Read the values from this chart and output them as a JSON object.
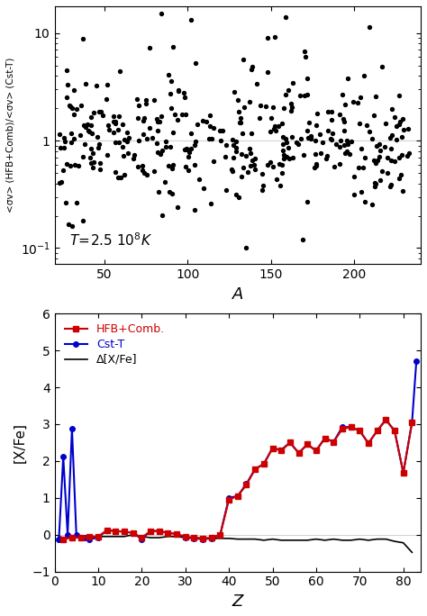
{
  "top_panel": {
    "xlabel": "A",
    "ylabel": "<σv> (HFB+Comb)/<σv> (Cst-T)",
    "annotation": "T=2.5 10⁸K",
    "xlim": [
      20,
      240
    ],
    "ylim_log": [
      -1.15,
      1.25
    ],
    "yticks": [
      0.1,
      1.0,
      10.0
    ],
    "hline_y": 1.0
  },
  "bottom_panel": {
    "xlabel": "Z",
    "ylabel": "[X/Fe]",
    "xlim": [
      0,
      84
    ],
    "ylim": [
      -1,
      6
    ],
    "yticks": [
      -1,
      0,
      1,
      2,
      3,
      4,
      5,
      6
    ],
    "hline_y": 0.0,
    "hfb_label": "HFB+Comb.",
    "cst_label": "Cst-T",
    "delta_label": "Δ[X/Fe]",
    "hfb_color": "#cc0000",
    "cst_color": "#0000cc",
    "delta_color": "#000000",
    "Z_hfb": [
      2,
      4,
      6,
      8,
      10,
      12,
      14,
      16,
      18,
      20,
      22,
      24,
      26,
      28,
      30,
      32,
      34,
      36,
      38,
      40,
      42,
      44,
      46,
      48,
      50,
      52,
      54,
      56,
      58,
      60,
      62,
      64,
      66,
      68,
      70,
      72,
      74,
      76,
      78,
      80,
      82
    ],
    "hfb_vals": [
      -0.12,
      -0.08,
      -0.08,
      -0.05,
      -0.05,
      0.12,
      0.1,
      0.08,
      0.05,
      -0.08,
      0.1,
      0.1,
      0.05,
      0.02,
      -0.05,
      -0.08,
      -0.1,
      -0.08,
      0.0,
      0.95,
      1.05,
      1.35,
      1.78,
      1.92,
      2.35,
      2.28,
      2.5,
      2.22,
      2.45,
      2.28,
      2.62,
      2.52,
      2.87,
      2.92,
      2.82,
      2.48,
      2.82,
      3.12,
      2.82,
      1.68,
      3.05
    ],
    "Z_cst": [
      1,
      2,
      3,
      4,
      5,
      6,
      7,
      8,
      10,
      12,
      14,
      16,
      18,
      20,
      22,
      24,
      26,
      28,
      30,
      32,
      34,
      36,
      38,
      40,
      42,
      44,
      46,
      48,
      50,
      52,
      54,
      56,
      58,
      60,
      62,
      64,
      66,
      68,
      70,
      72,
      74,
      76,
      78,
      80,
      82,
      83
    ],
    "cst_vals": [
      -0.12,
      2.12,
      0.0,
      2.88,
      0.0,
      -0.08,
      -0.08,
      -0.12,
      -0.08,
      0.12,
      0.1,
      0.08,
      0.05,
      -0.12,
      0.1,
      0.1,
      0.05,
      0.02,
      -0.08,
      -0.1,
      -0.12,
      -0.1,
      0.0,
      1.0,
      1.05,
      1.38,
      1.78,
      1.92,
      2.35,
      2.3,
      2.5,
      2.22,
      2.45,
      2.28,
      2.62,
      2.52,
      2.92,
      2.92,
      2.82,
      2.48,
      2.82,
      3.12,
      2.82,
      1.68,
      3.05,
      4.72
    ],
    "Z_delta": [
      1,
      2,
      4,
      6,
      8,
      10,
      12,
      14,
      16,
      18,
      20,
      22,
      24,
      26,
      28,
      30,
      32,
      34,
      36,
      38,
      40,
      42,
      44,
      46,
      48,
      50,
      52,
      54,
      56,
      58,
      60,
      62,
      64,
      66,
      68,
      70,
      72,
      74,
      76,
      78,
      80,
      82
    ],
    "delta_vals": [
      -0.05,
      -0.08,
      -0.05,
      -0.05,
      -0.05,
      -0.05,
      -0.05,
      -0.05,
      -0.05,
      0.0,
      -0.05,
      -0.08,
      -0.08,
      -0.05,
      -0.05,
      -0.08,
      -0.08,
      -0.1,
      -0.1,
      -0.1,
      -0.1,
      -0.12,
      -0.12,
      -0.12,
      -0.15,
      -0.12,
      -0.15,
      -0.15,
      -0.15,
      -0.15,
      -0.12,
      -0.15,
      -0.12,
      -0.15,
      -0.15,
      -0.12,
      -0.15,
      -0.12,
      -0.12,
      -0.18,
      -0.22,
      -0.48
    ]
  },
  "scatter_seed": 42,
  "scatter_n": 380
}
